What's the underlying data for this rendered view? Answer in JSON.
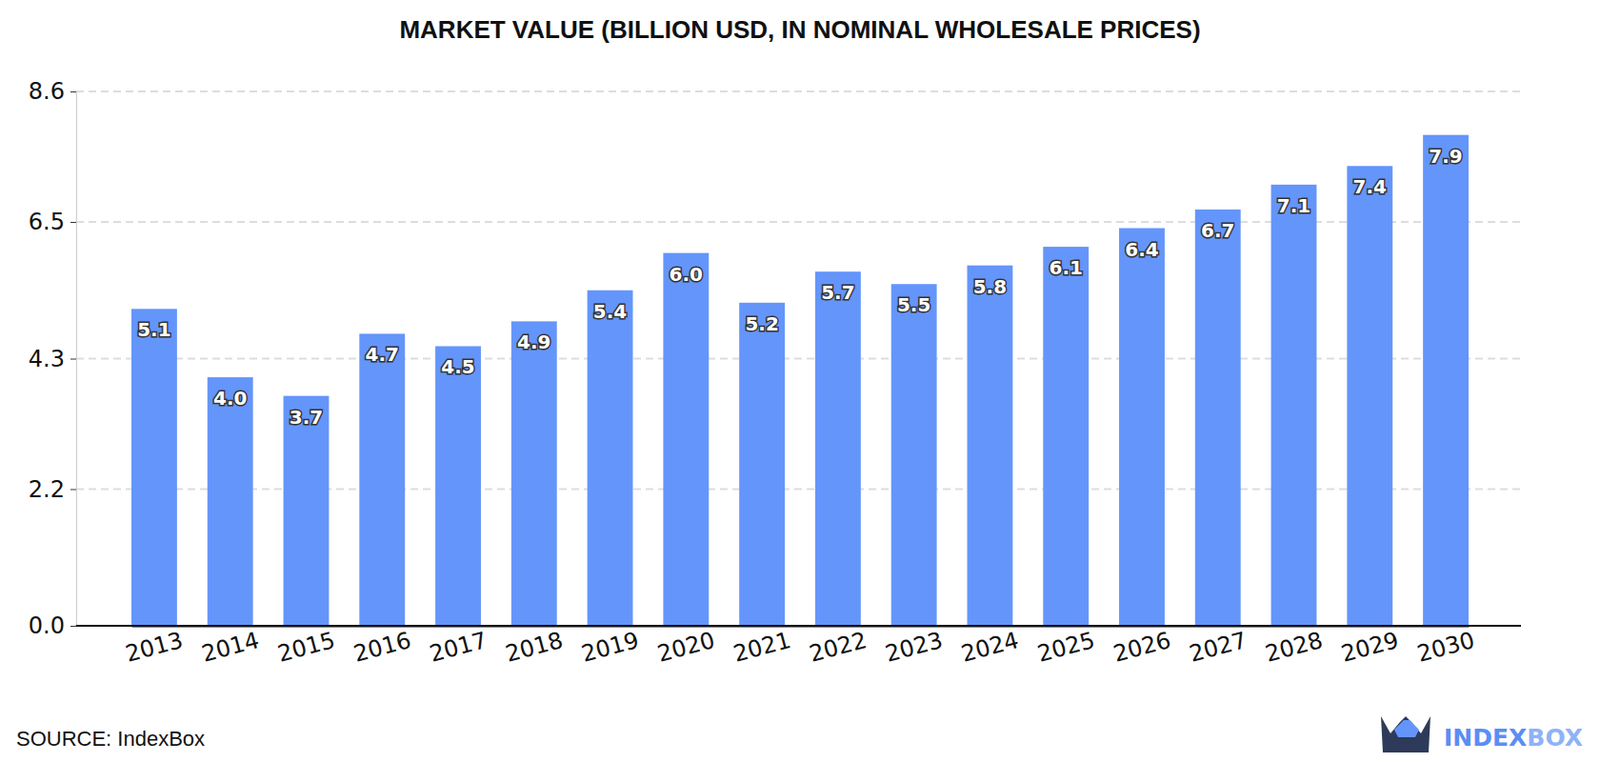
{
  "chart_data": {
    "type": "bar",
    "title": "MARKET VALUE (BILLION USD, IN NOMINAL WHOLESALE PRICES)",
    "categories": [
      "2013",
      "2014",
      "2015",
      "2016",
      "2017",
      "2018",
      "2019",
      "2020",
      "2021",
      "2022",
      "2023",
      "2024",
      "2025",
      "2026",
      "2027",
      "2028",
      "2029",
      "2030"
    ],
    "values": [
      5.1,
      4.0,
      3.7,
      4.7,
      4.5,
      4.9,
      5.4,
      6.0,
      5.2,
      5.7,
      5.5,
      5.8,
      6.1,
      6.4,
      6.7,
      7.1,
      7.4,
      7.9
    ],
    "value_labels": [
      "5.1",
      "4.0",
      "3.7",
      "4.7",
      "4.5",
      "4.9",
      "5.4",
      "6.0",
      "5.2",
      "5.7",
      "5.5",
      "5.8",
      "6.1",
      "6.4",
      "6.7",
      "7.1",
      "7.4",
      "7.9"
    ],
    "color": "#6495fa",
    "ylim": [
      0,
      8.6
    ],
    "yticks": [
      {
        "value": 0,
        "label": "0.0"
      },
      2.2,
      4.3,
      6.5,
      8.6
    ],
    "grid": true,
    "data_labels": true,
    "source": "SOURCE: IndexBox",
    "logo_text": [
      "INDEX",
      "BOX"
    ]
  }
}
